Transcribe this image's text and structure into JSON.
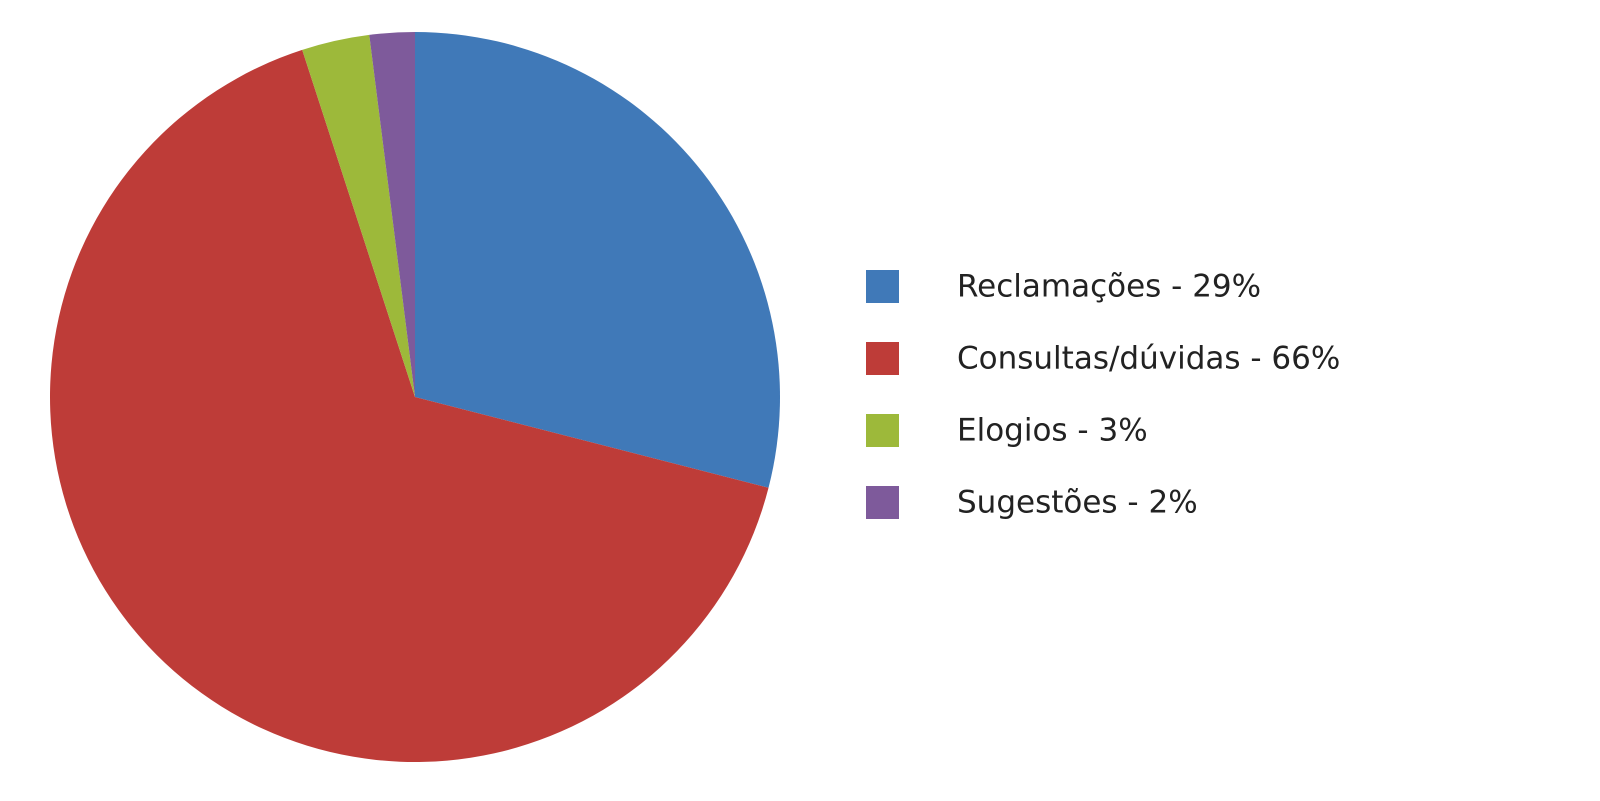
{
  "chart_data": {
    "type": "pie",
    "categories": [
      "Reclamações - 29%",
      "Consultas/dúvidas - 66%",
      "Elogios - 3%",
      "Sugestões - 2%"
    ],
    "values": [
      29,
      66,
      3,
      2
    ],
    "colors": [
      "#4079b8",
      "#be3c38",
      "#9db93a",
      "#7e5a9b"
    ],
    "legend": "right"
  }
}
